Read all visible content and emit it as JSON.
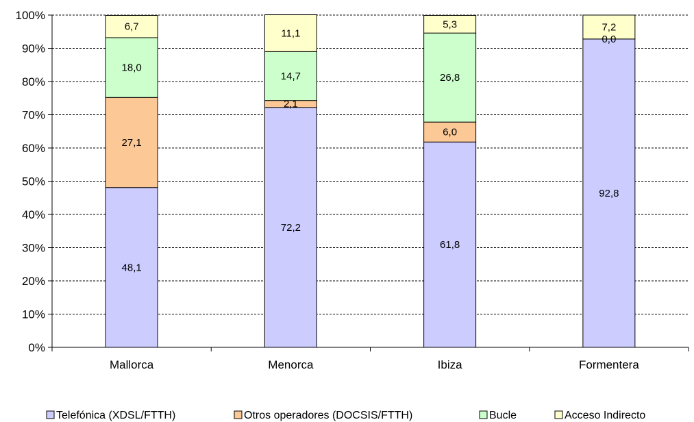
{
  "chart_data": {
    "type": "bar",
    "stacked": true,
    "percent_stacked": true,
    "categories": [
      "Mallorca",
      "Menorca",
      "Ibiza",
      "Formentera"
    ],
    "series": [
      {
        "name": "Telefónica (XDSL/FTTH)",
        "color": "#ccccff",
        "values": [
          48.1,
          72.2,
          61.8,
          92.8
        ],
        "labels": [
          "48,1",
          "72,2",
          "61,8",
          "92,8"
        ]
      },
      {
        "name": "Otros operadores (DOCSIS/FTTH)",
        "color": "#fbc896",
        "values": [
          27.1,
          2.1,
          6.0,
          0.0
        ],
        "labels": [
          "27,1",
          "2,1",
          "6,0",
          "0,0"
        ]
      },
      {
        "name": "Bucle",
        "color": "#ccffcc",
        "values": [
          18.0,
          14.7,
          26.8,
          0.0
        ],
        "labels": [
          "18,0",
          "14,7",
          "26,8",
          ""
        ]
      },
      {
        "name": "Acceso Indirecto",
        "color": "#ffffcc",
        "values": [
          6.7,
          11.1,
          5.3,
          7.2
        ],
        "labels": [
          "6,7",
          "11,1",
          "5,3",
          "7,2"
        ]
      }
    ],
    "yticks": [
      "0%",
      "10%",
      "20%",
      "30%",
      "40%",
      "50%",
      "60%",
      "70%",
      "80%",
      "90%",
      "100%"
    ],
    "ylim": [
      0,
      100
    ],
    "grid": "dashed horizontal",
    "legend_position": "bottom"
  }
}
